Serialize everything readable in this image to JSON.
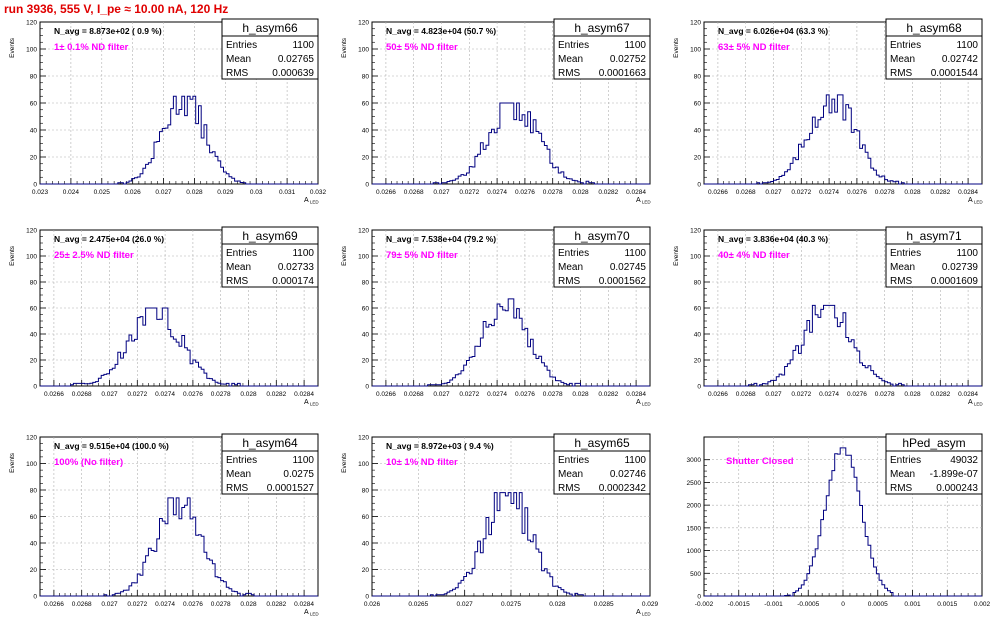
{
  "header": {
    "run_title": "run 3936,   555 V, I_pe ≈ 10.00 nA, 120 Hz"
  },
  "colors": {
    "histogram_line": "#000080",
    "annotation": "#ff00ff",
    "title_red": "#e00000",
    "grid": "#b0b0b0"
  },
  "chart_data": [
    {
      "type": "histogram",
      "name": "h_asym66",
      "ylabel": "Events",
      "xlabel": "A_{LED}",
      "grid": true,
      "xlim": [
        0.023,
        0.032
      ],
      "ylim": [
        0,
        120
      ],
      "x_ticks": [
        "0.023",
        "0.024",
        "0.025",
        "0.026",
        "0.027",
        "0.028",
        "0.029",
        "0.03",
        "0.031",
        "0.032"
      ],
      "y_ticks": [
        "0",
        "20",
        "40",
        "60",
        "80",
        "100",
        "120"
      ],
      "stats": [
        {
          "label": "Entries",
          "value": "1100"
        },
        {
          "label": "Mean",
          "value": "0.02765"
        },
        {
          "label": "RMS",
          "value": "0.000639"
        }
      ],
      "navg": "N_avg = 8.873e+02 ( 0.9 %)",
      "annotation": "1± 0.1% ND filter",
      "peak": 65,
      "mu": 0.02765,
      "sigma": 0.000639
    },
    {
      "type": "histogram",
      "name": "h_asym67",
      "ylabel": "Events",
      "xlabel": "A_{LED}",
      "grid": true,
      "xlim": [
        0.0265,
        0.0285
      ],
      "ylim": [
        0,
        120
      ],
      "x_ticks": [
        "0.0266",
        "0.0268",
        "0.027",
        "0.0272",
        "0.0274",
        "0.0276",
        "0.0278",
        "0.028",
        "0.0282",
        "0.0284"
      ],
      "y_ticks": [
        "0",
        "20",
        "40",
        "60",
        "80",
        "100",
        "120"
      ],
      "stats": [
        {
          "label": "Entries",
          "value": "1100"
        },
        {
          "label": "Mean",
          "value": "0.02752"
        },
        {
          "label": "RMS",
          "value": "0.0001663"
        }
      ],
      "navg": "N_avg = 4.823e+04 (50.7 %)",
      "annotation": "50± 5% ND filter",
      "peak": 60,
      "mu": 0.02752,
      "sigma": 0.0001663
    },
    {
      "type": "histogram",
      "name": "h_asym68",
      "ylabel": "Events",
      "xlabel": "A_{LED}",
      "grid": true,
      "xlim": [
        0.0265,
        0.0285
      ],
      "ylim": [
        0,
        120
      ],
      "x_ticks": [
        "0.0266",
        "0.0268",
        "0.027",
        "0.0272",
        "0.0274",
        "0.0276",
        "0.0278",
        "0.028",
        "0.0282",
        "0.0284"
      ],
      "y_ticks": [
        "0",
        "20",
        "40",
        "60",
        "80",
        "100",
        "120"
      ],
      "stats": [
        {
          "label": "Entries",
          "value": "1100"
        },
        {
          "label": "Mean",
          "value": "0.02742"
        },
        {
          "label": "RMS",
          "value": "0.0001544"
        }
      ],
      "navg": "N_avg = 6.026e+04 (63.3 %)",
      "annotation": "63± 5% ND filter",
      "peak": 66,
      "mu": 0.02742,
      "sigma": 0.0001544
    },
    {
      "type": "histogram",
      "name": "h_asym69",
      "ylabel": "Events",
      "xlabel": "A_{LED}",
      "grid": true,
      "xlim": [
        0.0265,
        0.0285
      ],
      "ylim": [
        0,
        120
      ],
      "x_ticks": [
        "0.0266",
        "0.0268",
        "0.027",
        "0.0272",
        "0.0274",
        "0.0276",
        "0.0278",
        "0.028",
        "0.0282",
        "0.0284"
      ],
      "y_ticks": [
        "0",
        "20",
        "40",
        "60",
        "80",
        "100",
        "120"
      ],
      "stats": [
        {
          "label": "Entries",
          "value": "1100"
        },
        {
          "label": "Mean",
          "value": "0.02733"
        },
        {
          "label": "RMS",
          "value": "0.000174"
        }
      ],
      "navg": "N_avg = 2.475e+04 (26.0 %)",
      "annotation": "25± 2.5% ND filter",
      "peak": 60,
      "mu": 0.02733,
      "sigma": 0.000174
    },
    {
      "type": "histogram",
      "name": "h_asym70",
      "ylabel": "Events",
      "xlabel": "A_{LED}",
      "grid": true,
      "xlim": [
        0.0265,
        0.0285
      ],
      "ylim": [
        0,
        120
      ],
      "x_ticks": [
        "0.0266",
        "0.0268",
        "0.027",
        "0.0272",
        "0.0274",
        "0.0276",
        "0.0278",
        "0.028",
        "0.0282",
        "0.0284"
      ],
      "y_ticks": [
        "0",
        "20",
        "40",
        "60",
        "80",
        "100",
        "120"
      ],
      "stats": [
        {
          "label": "Entries",
          "value": "1100"
        },
        {
          "label": "Mean",
          "value": "0.02745"
        },
        {
          "label": "RMS",
          "value": "0.0001562"
        }
      ],
      "navg": "N_avg = 7.538e+04 (79.2 %)",
      "annotation": "79± 5% ND filter",
      "peak": 67,
      "mu": 0.02745,
      "sigma": 0.0001562
    },
    {
      "type": "histogram",
      "name": "h_asym71",
      "ylabel": "Events",
      "xlabel": "A_{LED}",
      "grid": true,
      "xlim": [
        0.0265,
        0.0285
      ],
      "ylim": [
        0,
        120
      ],
      "x_ticks": [
        "0.0266",
        "0.0268",
        "0.027",
        "0.0272",
        "0.0274",
        "0.0276",
        "0.0278",
        "0.028",
        "0.0282",
        "0.0284"
      ],
      "y_ticks": [
        "0",
        "20",
        "40",
        "60",
        "80",
        "100",
        "120"
      ],
      "stats": [
        {
          "label": "Entries",
          "value": "1100"
        },
        {
          "label": "Mean",
          "value": "0.02739"
        },
        {
          "label": "RMS",
          "value": "0.0001609"
        }
      ],
      "navg": "N_avg = 3.836e+04 (40.3 %)",
      "annotation": "40± 4% ND filter",
      "peak": 62,
      "mu": 0.02739,
      "sigma": 0.0001609
    },
    {
      "type": "histogram",
      "name": "h_asym64",
      "ylabel": "Events",
      "xlabel": "A_{LED}",
      "grid": true,
      "xlim": [
        0.0265,
        0.0285
      ],
      "ylim": [
        0,
        120
      ],
      "x_ticks": [
        "0.0266",
        "0.0268",
        "0.027",
        "0.0272",
        "0.0274",
        "0.0276",
        "0.0278",
        "0.028",
        "0.0282",
        "0.0284"
      ],
      "y_ticks": [
        "0",
        "20",
        "40",
        "60",
        "80",
        "100",
        "120"
      ],
      "stats": [
        {
          "label": "Entries",
          "value": "1100"
        },
        {
          "label": "Mean",
          "value": "0.0275"
        },
        {
          "label": "RMS",
          "value": "0.0001527"
        }
      ],
      "navg": "N_avg = 9.515e+04 (100.0 %)",
      "annotation": "100% (No filter)",
      "peak": 74,
      "mu": 0.0275,
      "sigma": 0.0001527
    },
    {
      "type": "histogram",
      "name": "h_asym65",
      "ylabel": "Events",
      "xlabel": "A_{LED}",
      "grid": true,
      "xlim": [
        0.026,
        0.029
      ],
      "ylim": [
        0,
        120
      ],
      "x_ticks": [
        "0.026",
        "0.0265",
        "0.027",
        "0.0275",
        "0.028",
        "0.0285",
        "0.029"
      ],
      "y_ticks": [
        "0",
        "20",
        "40",
        "60",
        "80",
        "100",
        "120"
      ],
      "stats": [
        {
          "label": "Entries",
          "value": "1100"
        },
        {
          "label": "Mean",
          "value": "0.02746"
        },
        {
          "label": "RMS",
          "value": "0.0002342"
        }
      ],
      "navg": "N_avg = 8.972e+03 ( 9.4 %)",
      "annotation": "10± 1% ND filter",
      "peak": 78,
      "mu": 0.02746,
      "sigma": 0.0002342
    },
    {
      "type": "histogram",
      "name": "hPed_asym",
      "ylabel": "",
      "xlabel": "",
      "grid": true,
      "xlim": [
        -0.002,
        0.002
      ],
      "ylim": [
        0,
        3500
      ],
      "x_ticks": [
        "-0.002",
        "-0.0015",
        "-0.001",
        "-0.0005",
        "0",
        "0.0005",
        "0.001",
        "0.0015",
        "0.002"
      ],
      "y_ticks": [
        "0",
        "500",
        "1000",
        "1500",
        "2000",
        "2500",
        "3000"
      ],
      "stats": [
        {
          "label": "Entries",
          "value": "49032"
        },
        {
          "label": "Mean",
          "value": "-1.899e-07"
        },
        {
          "label": "RMS",
          "value": "0.000243"
        }
      ],
      "navg": "",
      "annotation": "Shutter Closed",
      "peak": 3260,
      "mu": 0.0,
      "sigma": 0.000243
    }
  ]
}
